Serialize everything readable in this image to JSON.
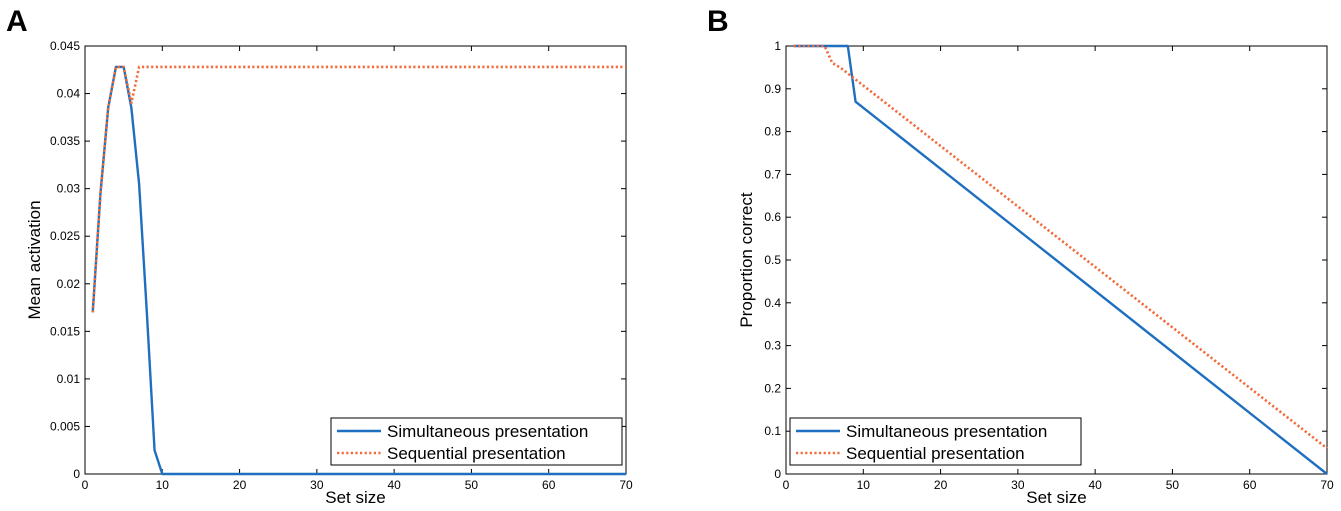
{
  "chart_data": [
    {
      "panel": "A",
      "type": "line",
      "title": "",
      "xlabel": "Set size",
      "ylabel": "Mean activation",
      "xlim": [
        0,
        70
      ],
      "ylim": [
        0,
        0.045
      ],
      "xticks": [
        0,
        10,
        20,
        30,
        40,
        50,
        60,
        70
      ],
      "yticks": [
        0,
        0.005,
        0.01,
        0.015,
        0.02,
        0.025,
        0.03,
        0.035,
        0.04,
        0.045
      ],
      "ytick_labels": [
        "0",
        "0.005",
        "0.01",
        "0.015",
        "0.02",
        "0.025",
        "0.03",
        "0.035",
        "0.04",
        "0.045"
      ],
      "grid": false,
      "legend_position": "bottom-right",
      "series": [
        {
          "name": "Simultaneous presentation",
          "color": "#1f6fc0",
          "style": "solid",
          "x": [
            1,
            2,
            3,
            4,
            5,
            6,
            7,
            8,
            9,
            10,
            70
          ],
          "y": [
            0.017,
            0.0295,
            0.0385,
            0.0428,
            0.0428,
            0.0385,
            0.0305,
            0.017,
            0.0025,
            0,
            0
          ]
        },
        {
          "name": "Sequential presentation",
          "color": "#f26b3a",
          "style": "dotted",
          "x": [
            1,
            2,
            3,
            4,
            5,
            6,
            7,
            8,
            70
          ],
          "y": [
            0.017,
            0.0295,
            0.0385,
            0.0428,
            0.0428,
            0.039,
            0.0428,
            0.0428,
            0.0428
          ]
        }
      ]
    },
    {
      "panel": "B",
      "type": "line",
      "title": "",
      "xlabel": "Set size",
      "ylabel": "Proportion correct",
      "xlim": [
        0,
        70
      ],
      "ylim": [
        0,
        1
      ],
      "xticks": [
        0,
        10,
        20,
        30,
        40,
        50,
        60,
        70
      ],
      "yticks": [
        0,
        0.1,
        0.2,
        0.3,
        0.4,
        0.5,
        0.6,
        0.7,
        0.8,
        0.9,
        1
      ],
      "ytick_labels": [
        "0",
        "0.1",
        "0.2",
        "0.3",
        "0.4",
        "0.5",
        "0.6",
        "0.7",
        "0.8",
        "0.9",
        "1"
      ],
      "grid": false,
      "legend_position": "bottom-left",
      "series": [
        {
          "name": "Simultaneous presentation",
          "color": "#1f6fc0",
          "style": "solid",
          "x": [
            1,
            8,
            9,
            70
          ],
          "y": [
            1,
            1,
            0.87,
            0
          ]
        },
        {
          "name": "Sequential presentation",
          "color": "#f26b3a",
          "style": "dotted",
          "x": [
            1,
            5,
            6,
            7,
            70
          ],
          "y": [
            1,
            1,
            0.96,
            0.95,
            0.06
          ]
        }
      ]
    }
  ]
}
